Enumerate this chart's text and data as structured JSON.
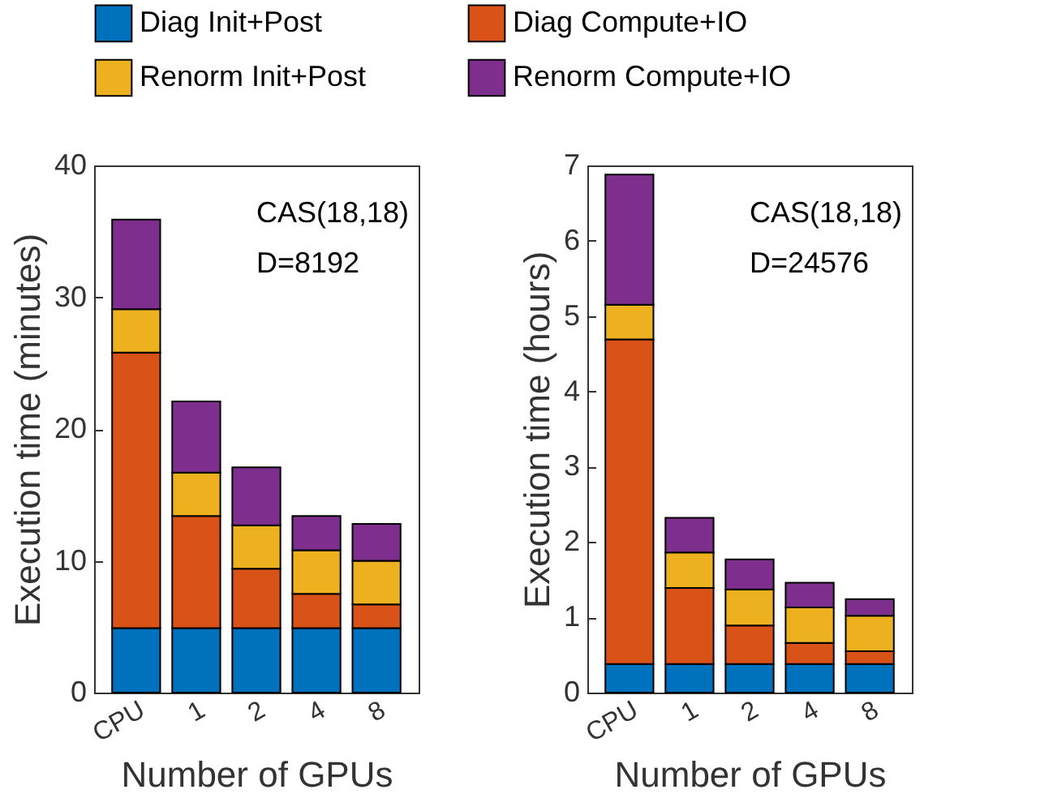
{
  "chart_data": [
    {
      "type": "bar",
      "stacked": true,
      "legend": "top",
      "xlabel": "Number of GPUs",
      "ylabel": "Execution time (minutes)",
      "categories": [
        "CPU",
        "1",
        "2",
        "4",
        "8"
      ],
      "ylim": [
        0,
        40
      ],
      "yticks": [
        0,
        10,
        20,
        30,
        40
      ],
      "annotations": [
        "CAS(18,18)",
        "D=8192"
      ],
      "series": [
        {
          "name": "Diag Init+Post",
          "color": "#0072bd",
          "values": [
            4.9,
            4.9,
            4.9,
            4.9,
            4.9
          ]
        },
        {
          "name": "Diag Compute+IO",
          "color": "#d95319",
          "values": [
            20.9,
            8.5,
            4.5,
            2.6,
            1.8
          ]
        },
        {
          "name": "Renorm Init+Post",
          "color": "#edb120",
          "values": [
            3.3,
            3.3,
            3.3,
            3.3,
            3.3
          ]
        },
        {
          "name": "Renorm Compute+IO",
          "color": "#7e2f8e",
          "values": [
            6.8,
            5.4,
            4.4,
            2.6,
            2.8
          ]
        }
      ]
    },
    {
      "type": "bar",
      "stacked": true,
      "legend": "top",
      "xlabel": "Number of GPUs",
      "ylabel": "Execution time (hours)",
      "categories": [
        "CPU",
        "1",
        "2",
        "4",
        "8"
      ],
      "ylim": [
        0,
        7
      ],
      "yticks": [
        0,
        1,
        2,
        3,
        4,
        5,
        6,
        7
      ],
      "annotations": [
        "CAS(18,18)",
        "D=24576"
      ],
      "series": [
        {
          "name": "Diag Init+Post",
          "color": "#0072bd",
          "values": [
            0.38,
            0.38,
            0.38,
            0.38,
            0.38
          ]
        },
        {
          "name": "Diag Compute+IO",
          "color": "#d95319",
          "values": [
            4.31,
            1.01,
            0.51,
            0.28,
            0.17
          ]
        },
        {
          "name": "Renorm Init+Post",
          "color": "#edb120",
          "values": [
            0.46,
            0.47,
            0.48,
            0.47,
            0.47
          ]
        },
        {
          "name": "Renorm Compute+IO",
          "color": "#7e2f8e",
          "values": [
            1.73,
            0.46,
            0.4,
            0.33,
            0.22
          ]
        }
      ]
    }
  ]
}
